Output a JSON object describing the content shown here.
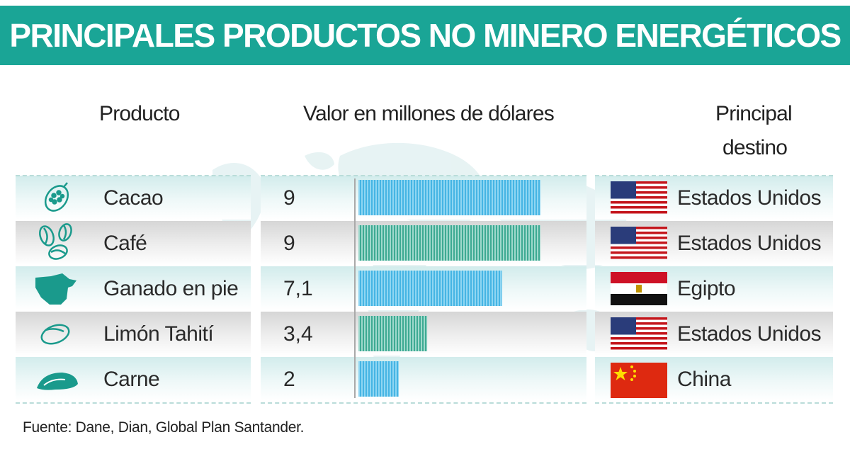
{
  "title": "PRINCIPALES PRODUCTOS NO MINERO ENERGÉTICOS",
  "headers": {
    "product": "Producto",
    "value": "Valor en millones de dólares",
    "destination_line1": "Principal",
    "destination_line2": "destino"
  },
  "rows": [
    {
      "product": "Cacao",
      "value_label": "9",
      "destination": "Estados Unidos",
      "icon": "cacao-pod-icon",
      "flag": "usa-flag"
    },
    {
      "product": "Café",
      "value_label": "9",
      "destination": "Estados Unidos",
      "icon": "coffee-beans-icon",
      "flag": "usa-flag"
    },
    {
      "product": "Ganado en pie",
      "value_label": "7,1",
      "destination": "Egipto",
      "icon": "cow-head-icon",
      "flag": "egypt-flag"
    },
    {
      "product": "Limón Tahití",
      "value_label": "3,4",
      "destination": "Estados Unidos",
      "icon": "lime-icon",
      "flag": "usa-flag"
    },
    {
      "product": "Carne",
      "value_label": "2",
      "destination": "China",
      "icon": "meat-steak-icon",
      "flag": "china-flag"
    }
  ],
  "chart_data": {
    "type": "bar",
    "orientation": "horizontal",
    "title": "PRINCIPALES PRODUCTOS NO MINERO ENERGÉTICOS",
    "ylabel": "Valor en millones de dólares",
    "categories": [
      "Cacao",
      "Café",
      "Ganado en pie",
      "Limón Tahití",
      "Carne"
    ],
    "values": [
      9,
      9,
      7.1,
      3.4,
      2
    ],
    "xlim": [
      0,
      9
    ]
  },
  "colors": {
    "banner": "#1aa596",
    "bar_blue": "#5cc0ea",
    "bar_teal": "#56bba7",
    "row_teal": "#d2ecec",
    "row_grey": "#d6d6d6"
  },
  "footer": "Fuente: Dane, Dian, Global Plan Santander."
}
